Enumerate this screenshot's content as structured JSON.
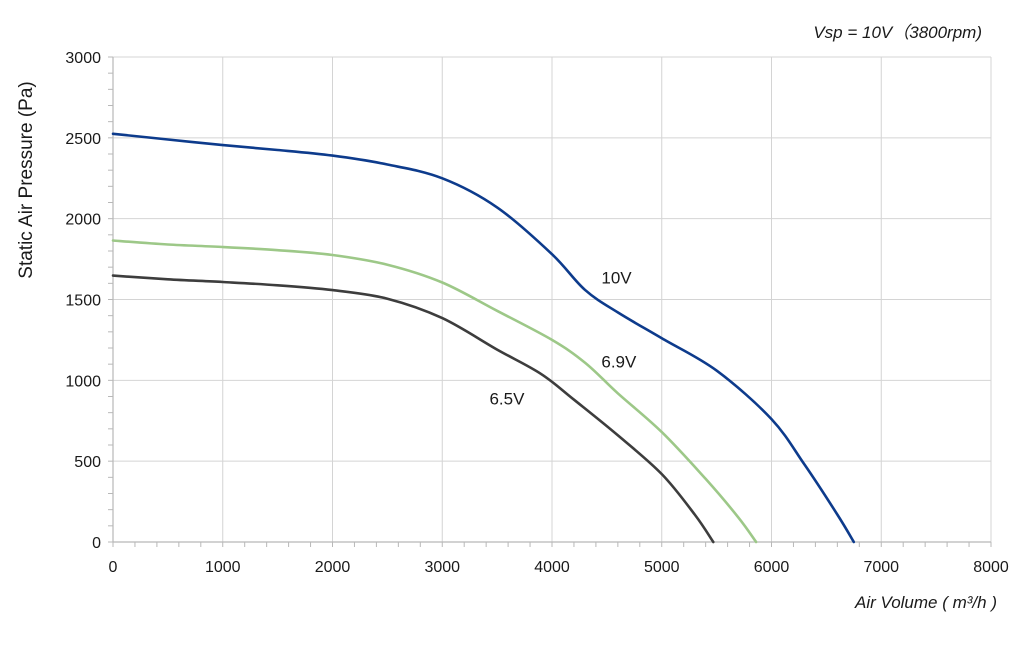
{
  "chart_data": {
    "type": "line",
    "title": "Vsp = 10V（3800rpm)",
    "xlabel": "Air Volume ( m³/h )",
    "ylabel": "Static Air Pressure  (Pa)",
    "xlim": [
      0,
      8000
    ],
    "ylim": [
      0,
      3000
    ],
    "x_ticks": [
      0,
      1000,
      2000,
      3000,
      4000,
      5000,
      6000,
      7000,
      8000
    ],
    "y_ticks": [
      0,
      500,
      1000,
      1500,
      2000,
      2500,
      3000
    ],
    "x_tick_labels": [
      "0",
      "1000",
      "2000",
      "3000",
      "4000",
      "5000",
      "6000",
      "7000",
      "8000"
    ],
    "y_tick_labels": [
      "0",
      "500",
      "1000",
      "1500",
      "2000",
      "2500",
      "3000"
    ],
    "grid": true,
    "series": [
      {
        "name": "10V",
        "color": "#0d3b8c",
        "x": [
          0,
          500,
          1000,
          1500,
          2000,
          2500,
          3000,
          3500,
          4000,
          4300,
          4600,
          5000,
          5500,
          6000,
          6300,
          6600,
          6750
        ],
        "y": [
          2525,
          2490,
          2455,
          2425,
          2390,
          2335,
          2250,
          2070,
          1780,
          1560,
          1420,
          1260,
          1060,
          760,
          480,
          170,
          0
        ]
      },
      {
        "name": "6.9V",
        "color": "#9dc888",
        "x": [
          0,
          500,
          1000,
          1500,
          2000,
          2500,
          3000,
          3500,
          4000,
          4300,
          4600,
          5000,
          5400,
          5700,
          5860
        ],
        "y": [
          1865,
          1840,
          1825,
          1805,
          1775,
          1715,
          1605,
          1430,
          1250,
          1110,
          920,
          680,
          390,
          150,
          0
        ]
      },
      {
        "name": "6.5V",
        "color": "#3d3d3d",
        "x": [
          0,
          500,
          1000,
          1500,
          2000,
          2500,
          3000,
          3500,
          3900,
          4200,
          4600,
          5000,
          5300,
          5470
        ],
        "y": [
          1648,
          1625,
          1608,
          1588,
          1558,
          1505,
          1385,
          1190,
          1040,
          880,
          660,
          420,
          170,
          0
        ]
      }
    ],
    "series_labels": [
      {
        "text": "10V",
        "x": 4450,
        "y": 1600
      },
      {
        "text": "6.9V",
        "x": 4450,
        "y": 1080
      },
      {
        "text": "6.5V",
        "x": 3430,
        "y": 850
      }
    ]
  }
}
